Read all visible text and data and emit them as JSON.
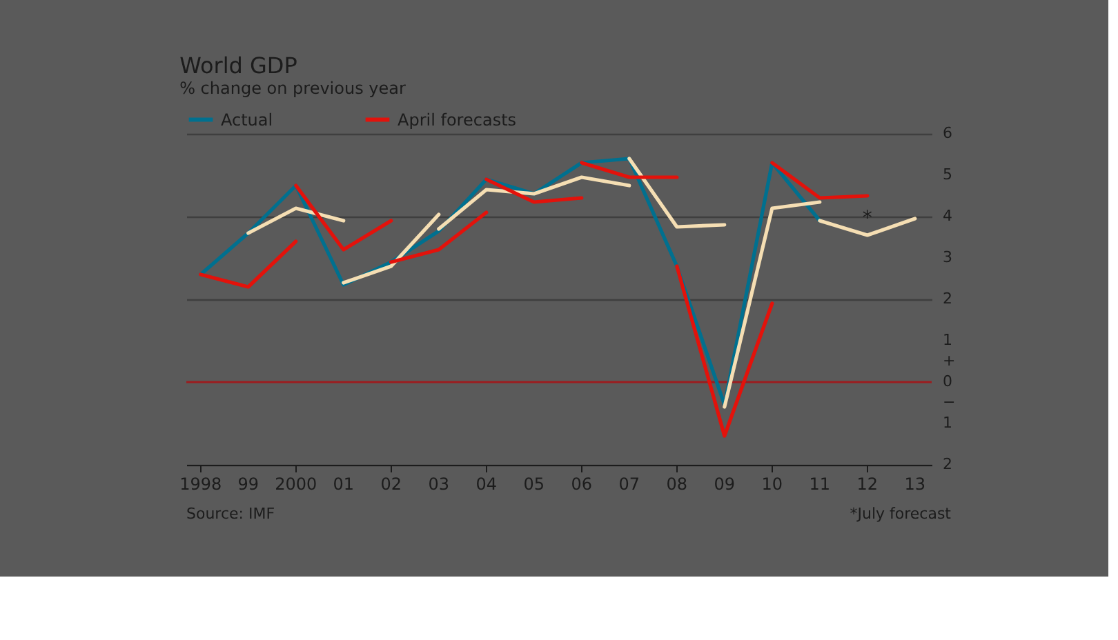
{
  "chart_data": {
    "type": "line",
    "title": "World GDP",
    "subtitle": "% change on previous year",
    "xlim": [
      1997.7,
      2013.35
    ],
    "xticks": [
      {
        "value": 1998,
        "label": "1998"
      },
      {
        "value": 1999,
        "label": "99"
      },
      {
        "value": 2000,
        "label": "2000"
      },
      {
        "value": 2001,
        "label": "01"
      },
      {
        "value": 2002,
        "label": "02"
      },
      {
        "value": 2003,
        "label": "03"
      },
      {
        "value": 2004,
        "label": "04"
      },
      {
        "value": 2005,
        "label": "05"
      },
      {
        "value": 2006,
        "label": "06"
      },
      {
        "value": 2007,
        "label": "07"
      },
      {
        "value": 2008,
        "label": "08"
      },
      {
        "value": 2009,
        "label": "09"
      },
      {
        "value": 2010,
        "label": "10"
      },
      {
        "value": 2011,
        "label": "11"
      },
      {
        "value": 2012,
        "label": "12"
      },
      {
        "value": 2013,
        "label": "13"
      }
    ],
    "ylim": [
      -2,
      6
    ],
    "yticks": [
      {
        "value": -2,
        "label": "2"
      },
      {
        "value": -1,
        "label": "1"
      },
      {
        "value": -0.5,
        "label": "−"
      },
      0,
      {
        "value": 0.5,
        "label": "+"
      },
      1,
      2,
      3,
      4,
      5,
      6
    ],
    "grid": "y",
    "legend": "top",
    "marker": "none",
    "line_style": "solid",
    "ref_lines": [
      {
        "axis": "y",
        "value": 0,
        "color": "#9b1c1f"
      }
    ],
    "annotations": [
      "Source: IMF",
      "*July forecast",
      {
        "text": "*",
        "x": 2012,
        "y": 3.55
      }
    ],
    "series": [
      {
        "name": "Actual",
        "color": "#00708f",
        "x": [
          1998,
          1999,
          2000,
          2001,
          2002,
          2003,
          2004,
          2005,
          2006,
          2007,
          2008,
          2009,
          2010,
          2011
        ],
        "values": [
          2.6,
          3.6,
          4.75,
          2.35,
          2.9,
          3.65,
          4.9,
          4.55,
          5.3,
          5.4,
          2.8,
          -0.55,
          5.3,
          3.9
        ]
      },
      {
        "color": "#f5deb3",
        "x": [
          1999,
          2000,
          2001
        ],
        "values": [
          3.6,
          4.2,
          3.9
        ]
      },
      {
        "color": "#f5deb3",
        "x": [
          2001,
          2002,
          2003
        ],
        "values": [
          2.4,
          2.8,
          4.05
        ]
      },
      {
        "color": "#f5deb3",
        "x": [
          2003,
          2004,
          2005,
          2006,
          2007
        ],
        "values": [
          3.7,
          4.65,
          4.55,
          4.95,
          4.75
        ]
      },
      {
        "color": "#f5deb3",
        "x": [
          2007,
          2008,
          2009
        ],
        "values": [
          5.4,
          3.75,
          3.8
        ]
      },
      {
        "color": "#f5deb3",
        "x": [
          2009,
          2010,
          2011
        ],
        "values": [
          -0.6,
          4.2,
          4.35
        ]
      },
      {
        "color": "#f5deb3",
        "x": [
          2011,
          2012,
          2013
        ],
        "values": [
          3.9,
          3.55,
          3.95
        ]
      },
      {
        "name": "April forecasts",
        "color": "#e3120b",
        "x": [
          1998,
          1999,
          2000
        ],
        "values": [
          2.6,
          2.3,
          3.4
        ]
      },
      {
        "color": "#e3120b",
        "x": [
          2000,
          2001,
          2002
        ],
        "values": [
          4.75,
          3.2,
          3.9
        ]
      },
      {
        "color": "#e3120b",
        "x": [
          2002,
          2003,
          2004
        ],
        "values": [
          2.9,
          3.2,
          4.1
        ]
      },
      {
        "color": "#e3120b",
        "x": [
          2004,
          2005,
          2006
        ],
        "values": [
          4.9,
          4.35,
          4.45
        ]
      },
      {
        "color": "#e3120b",
        "x": [
          2006,
          2007,
          2008
        ],
        "values": [
          5.3,
          4.95,
          4.95
        ]
      },
      {
        "color": "#e3120b",
        "x": [
          2008,
          2009,
          2010
        ],
        "values": [
          2.8,
          -1.3,
          1.9
        ]
      },
      {
        "color": "#e3120b",
        "x": [
          2010,
          2011,
          2012
        ],
        "values": [
          5.3,
          4.45,
          4.5
        ]
      }
    ]
  }
}
